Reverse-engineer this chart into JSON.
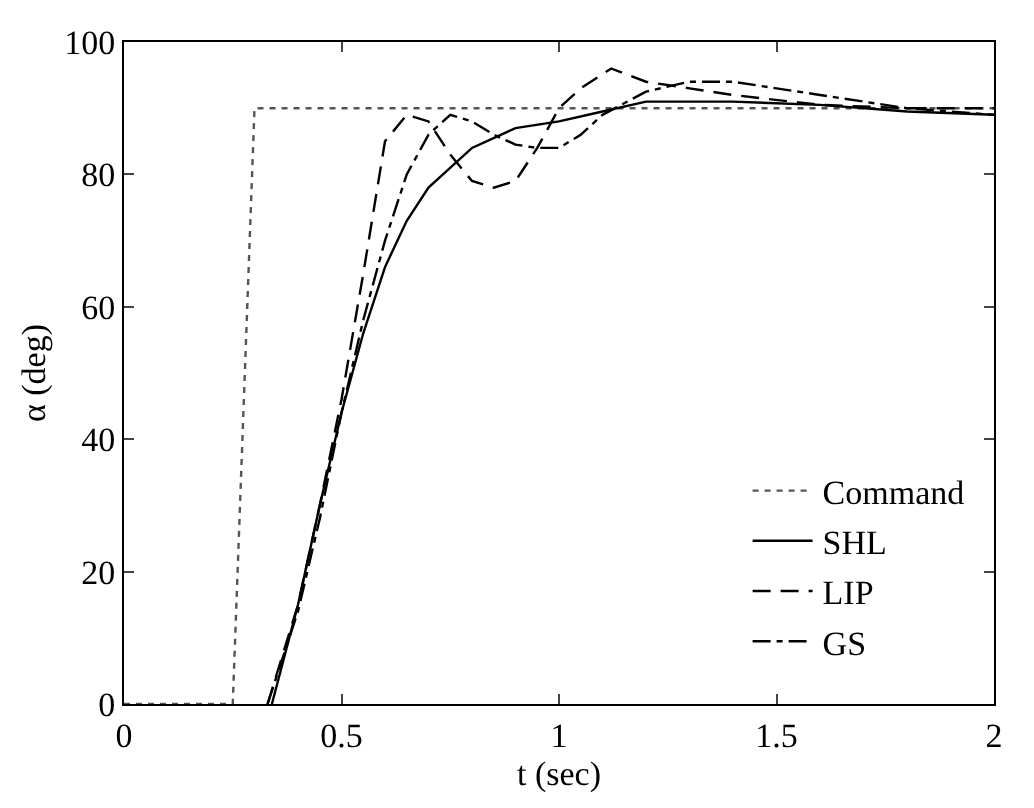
{
  "chart_data": {
    "type": "line",
    "xlabel": "t (sec)",
    "ylabel": "α (deg)",
    "xlim": [
      0,
      2
    ],
    "ylim": [
      0,
      100
    ],
    "xticks": [
      0,
      0.5,
      1,
      1.5,
      2
    ],
    "yticks": [
      0,
      20,
      40,
      60,
      80,
      100
    ],
    "legend": "bottom right",
    "marker": "none",
    "series": [
      {
        "name": "Command",
        "color": "#555555",
        "line_style": "dotted",
        "x": [
          0,
          0.25,
          0.3,
          2
        ],
        "values": [
          0,
          0,
          90,
          90
        ]
      },
      {
        "name": "SHL",
        "color": "#000000",
        "line_style": "solid",
        "x": [
          0.34,
          0.4,
          0.45,
          0.5,
          0.55,
          0.6,
          0.65,
          0.7,
          0.8,
          0.9,
          1.0,
          1.1,
          1.2,
          1.4,
          1.6,
          1.8,
          2.0
        ],
        "values": [
          0,
          15,
          30,
          44,
          56,
          66,
          73,
          78,
          84,
          87,
          88,
          89.5,
          91,
          91,
          90.5,
          89.5,
          89
        ]
      },
      {
        "name": "LIP",
        "color": "#000000",
        "line_style": "longdash",
        "x": [
          0.33,
          0.4,
          0.45,
          0.5,
          0.55,
          0.6,
          0.65,
          0.7,
          0.75,
          0.8,
          0.85,
          0.9,
          0.95,
          1.0,
          1.05,
          1.12,
          1.2,
          1.3,
          1.4,
          1.6,
          1.8,
          2.0
        ],
        "values": [
          0,
          15,
          30,
          46,
          65,
          85,
          89,
          88,
          83,
          79,
          78,
          79,
          84,
          90,
          93,
          96,
          94,
          93,
          92,
          90.5,
          90,
          90
        ]
      },
      {
        "name": "GS",
        "color": "#000000",
        "line_style": "dashdot",
        "x": [
          0.33,
          0.4,
          0.45,
          0.5,
          0.55,
          0.6,
          0.65,
          0.7,
          0.75,
          0.8,
          0.85,
          0.9,
          0.95,
          1.0,
          1.05,
          1.1,
          1.2,
          1.3,
          1.4,
          1.5,
          1.6,
          1.7,
          1.8,
          2.0
        ],
        "values": [
          0,
          14,
          28,
          44,
          58,
          70,
          80,
          86,
          89,
          88,
          86,
          84.5,
          84,
          84,
          86,
          89,
          92.5,
          94,
          94,
          93,
          92,
          91,
          90,
          89
        ]
      }
    ]
  }
}
